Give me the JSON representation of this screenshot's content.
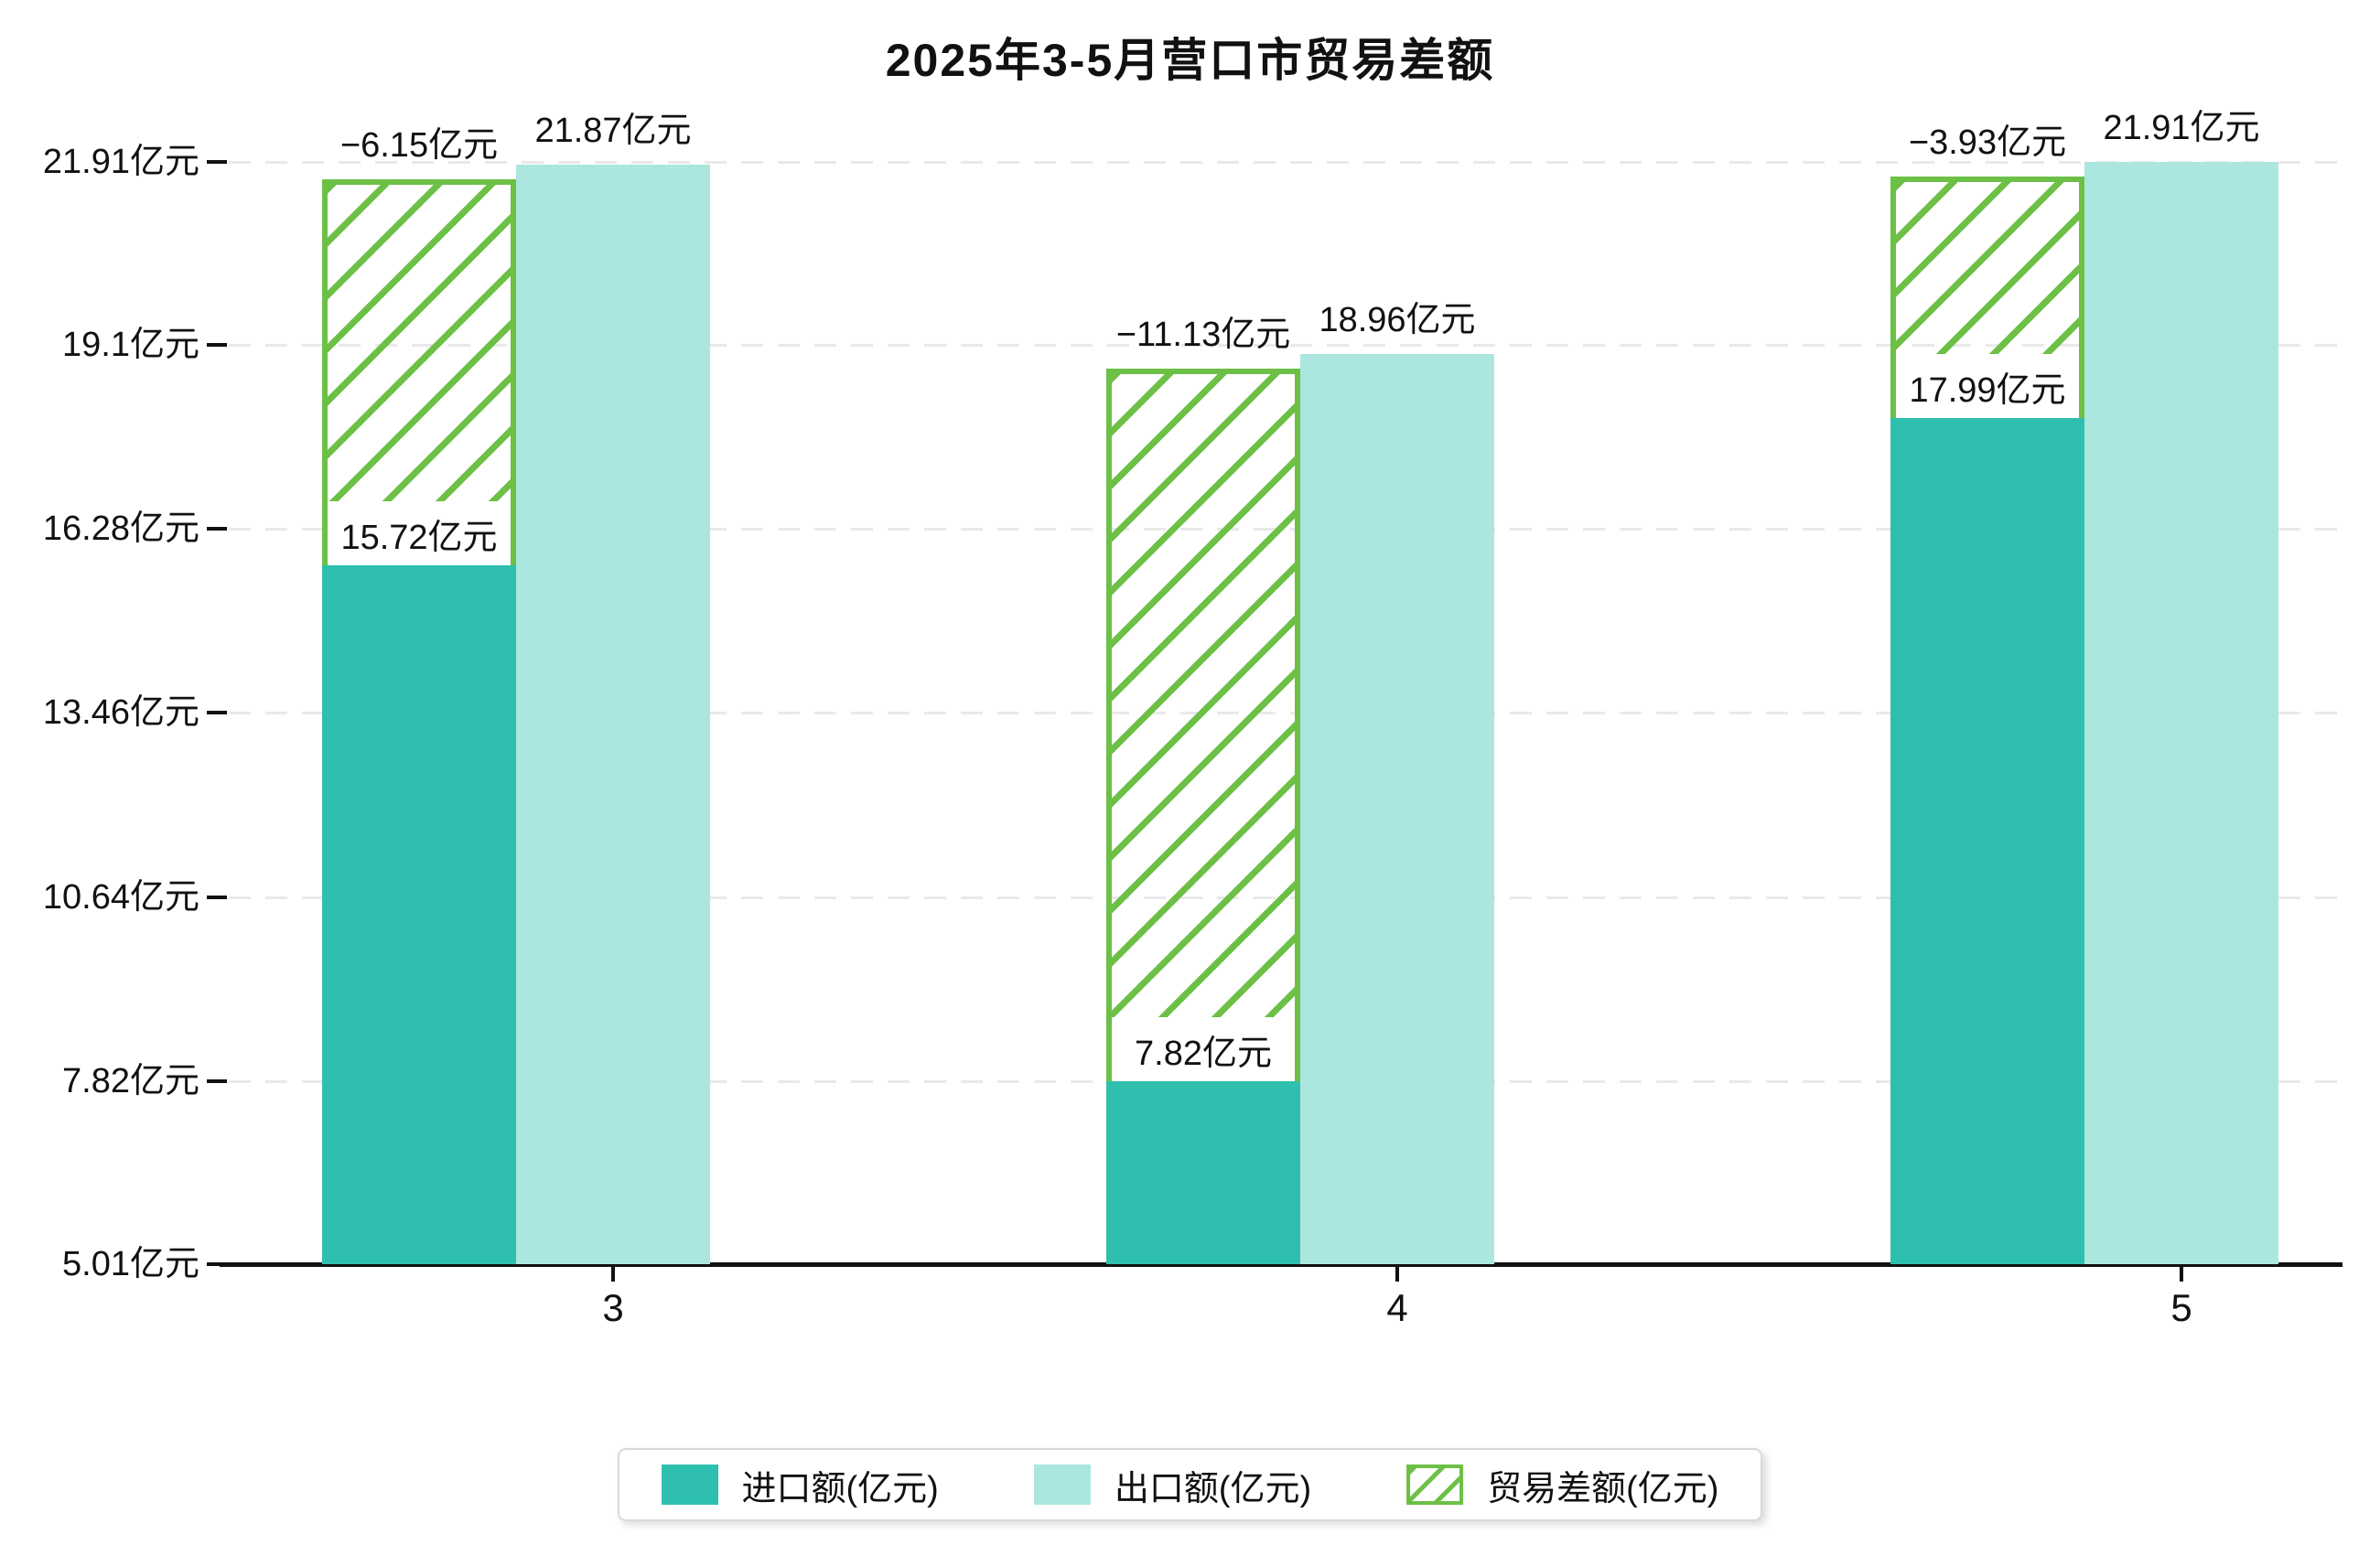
{
  "title": "2025年3-5月营口市贸易差额",
  "chart_data": {
    "type": "bar",
    "title": "2025年3-5月营口市贸易差额",
    "categories": [
      "3",
      "4",
      "5"
    ],
    "series": [
      {
        "name": "进口额(亿元)",
        "values": [
          15.72,
          7.82,
          17.99
        ],
        "color": "#2fbfae",
        "style": "solid"
      },
      {
        "name": "出口额(亿元)",
        "values": [
          21.87,
          18.96,
          21.91
        ],
        "color": "#abe7df",
        "style": "solid"
      },
      {
        "name": "贸易差额(亿元)",
        "values": [
          -6.15,
          -11.13,
          -3.93
        ],
        "color": "#6cc046",
        "style": "hatch"
      }
    ],
    "bar_labels": {
      "import": [
        "15.72亿元",
        "7.82亿元",
        "17.99亿元"
      ],
      "export": [
        "21.87亿元",
        "18.96亿元",
        "21.91亿元"
      ],
      "diff": [
        "−6.15亿元",
        "−11.13亿元",
        "−3.93亿元"
      ]
    },
    "y_axis": {
      "unit": "亿元",
      "min": 5.01,
      "max": 21.91,
      "tick_values": [
        21.91,
        19.1,
        16.28,
        13.46,
        10.64,
        7.82,
        5.01
      ],
      "tick_labels": [
        "21.91亿元",
        "19.1亿元",
        "16.28亿元",
        "13.46亿元",
        "10.64亿元",
        "7.82亿元",
        "5.01亿元"
      ]
    },
    "x_axis": {
      "tick_labels": [
        "3",
        "4",
        "5"
      ]
    },
    "grid": true,
    "legend_position": "bottom"
  },
  "legend": {
    "items": [
      {
        "label": "进口额(亿元)"
      },
      {
        "label": "出口额(亿元)"
      },
      {
        "label": "贸易差额(亿元)"
      }
    ]
  },
  "colors": {
    "import": "#2fbfae",
    "export": "#abe7df",
    "diff_green": "#6cc046",
    "grid": "#e9e9e9",
    "axis": "#111111",
    "text": "#111111",
    "legend_border": "#d9d9d9"
  }
}
